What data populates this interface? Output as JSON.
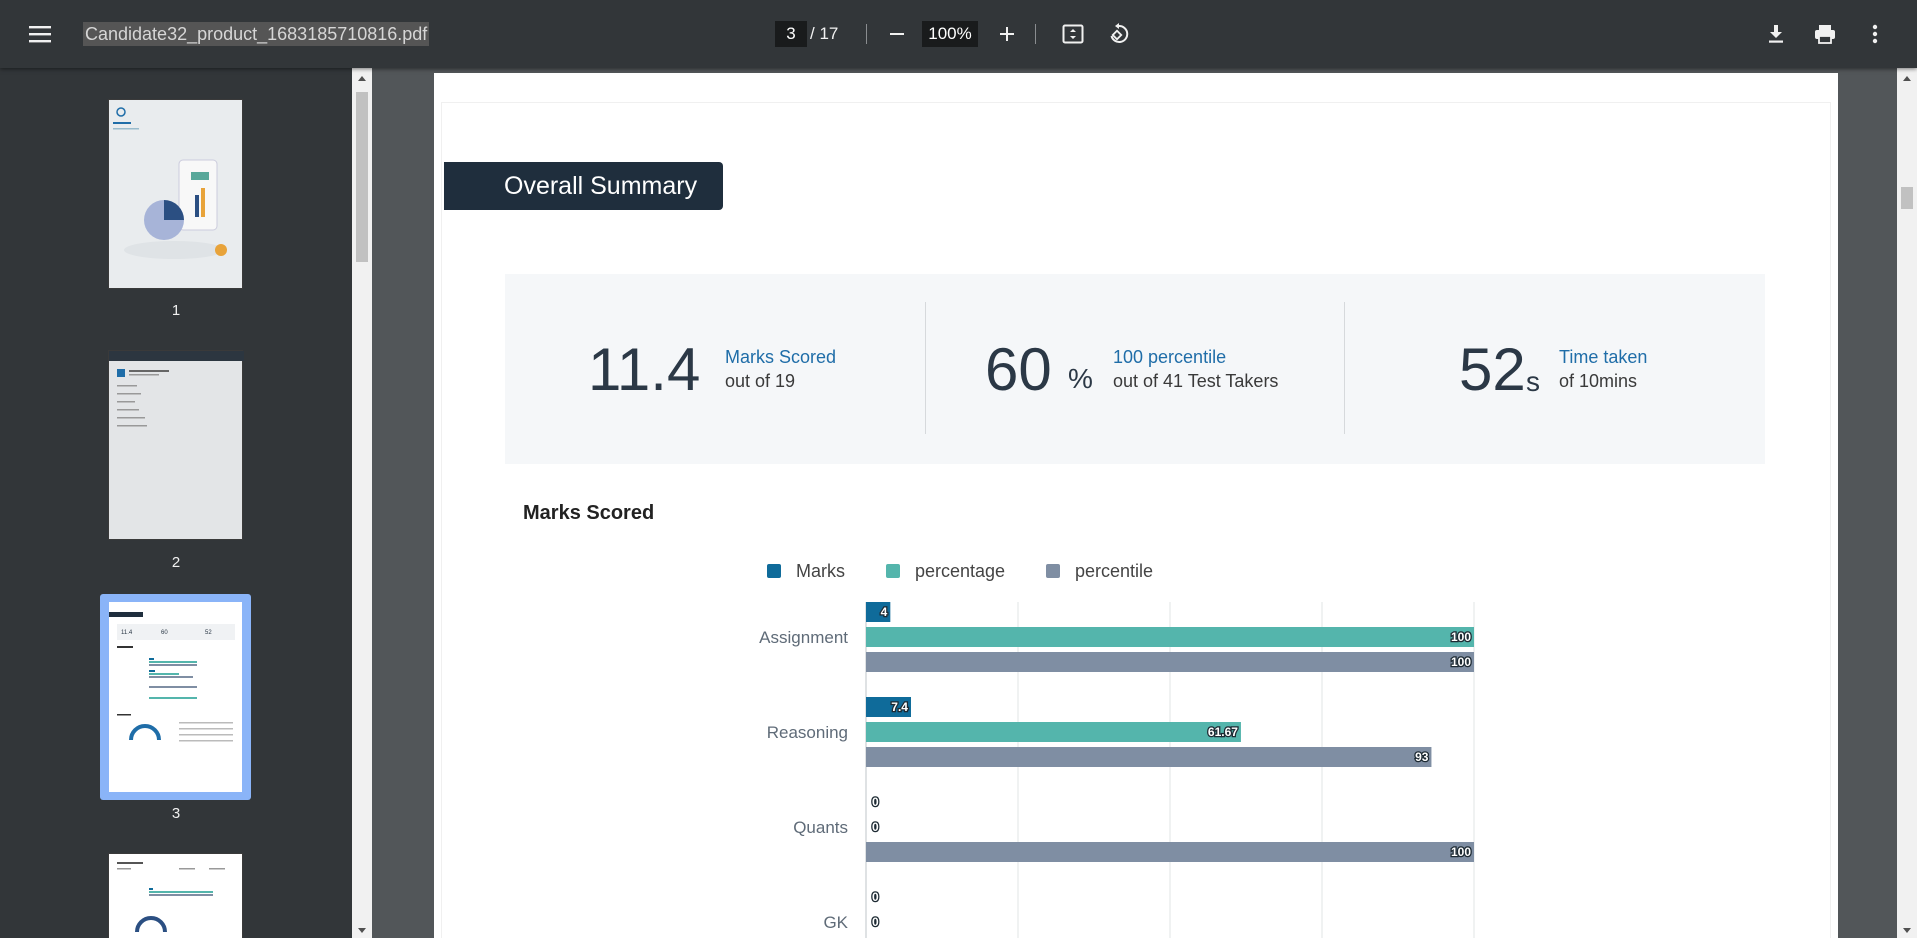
{
  "toolbar": {
    "filename": "Candidate32_product_1683185710816.pdf",
    "page_current": "3",
    "page_total": "/ 17",
    "zoom": "100%"
  },
  "sidebar": {
    "pages": [
      "1",
      "2",
      "3"
    ]
  },
  "report": {
    "section_heading": "Overall Summary",
    "stats": [
      {
        "value": "11.4",
        "unit": "",
        "label": "Marks Scored",
        "sub": "out of 19"
      },
      {
        "value": "60",
        "unit": "%",
        "label": "100 percentile",
        "sub": "out of 41 Test Takers"
      },
      {
        "value": "52",
        "unit": "s",
        "label": "Time taken",
        "sub": "of 10mins"
      }
    ],
    "chart_title": "Marks Scored"
  },
  "colors": {
    "accent": "#1f6da8",
    "marks": "#0f6b9a",
    "percentage": "#54b5ac",
    "percentile": "#7f8ea3"
  },
  "chart_data": {
    "type": "bar",
    "orientation": "horizontal",
    "categories": [
      "Assignment",
      "Reasoning",
      "Quants",
      "GK"
    ],
    "series": [
      {
        "name": "Marks",
        "values": [
          4,
          7.4,
          0,
          0
        ]
      },
      {
        "name": "percentage",
        "values": [
          100,
          61.67,
          0,
          0
        ]
      },
      {
        "name": "percentile",
        "values": [
          100,
          93,
          100,
          null
        ]
      }
    ],
    "xlim": [
      0,
      100
    ],
    "grid": true,
    "legend": "top"
  }
}
